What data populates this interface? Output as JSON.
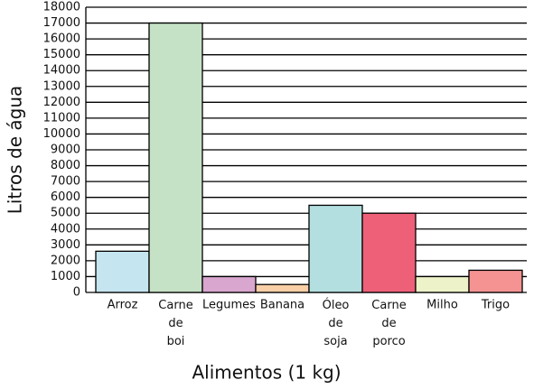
{
  "chart_data": {
    "type": "bar",
    "x_label": "Alimentos (1 kg)",
    "y_label": "Litros de água",
    "categories": [
      "Arroz",
      "Carne de boi",
      "Legumes",
      "Banana",
      "Óleo de soja",
      "Carne de porco",
      "Milho",
      "Trigo"
    ],
    "values": [
      2600,
      17000,
      1000,
      500,
      5500,
      5000,
      1000,
      1400
    ],
    "colors": [
      "#c5e5f0",
      "#c6e2c6",
      "#d9a6cf",
      "#f8cfa6",
      "#b3dfe0",
      "#ee5f78",
      "#eef2c9",
      "#f49392"
    ],
    "ylim": [
      0,
      18000
    ],
    "yticks": [
      0,
      1000,
      2000,
      3000,
      4000,
      5000,
      6000,
      7000,
      8000,
      9000,
      10000,
      11000,
      12000,
      13000,
      14000,
      15000,
      16000,
      17000,
      18000
    ],
    "grid": true
  }
}
